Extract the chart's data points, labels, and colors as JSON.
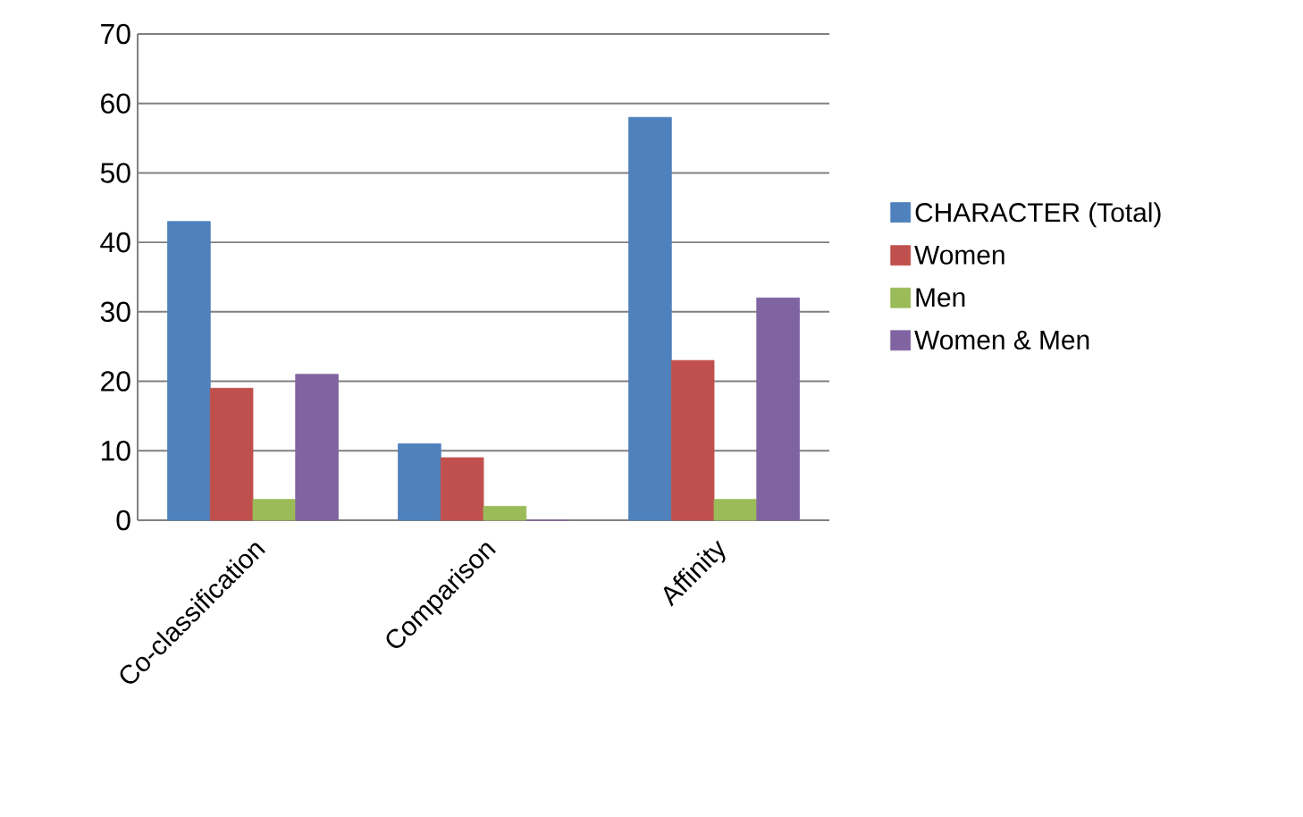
{
  "chart_data": {
    "type": "bar",
    "categories": [
      "Co-classification",
      "Comparison",
      "Affinity"
    ],
    "series": [
      {
        "name": "CHARACTER (Total)",
        "color": "#4f81bd",
        "values": [
          43,
          11,
          58
        ]
      },
      {
        "name": "Women",
        "color": "#c0504d",
        "values": [
          19,
          9,
          23
        ]
      },
      {
        "name": "Men",
        "color": "#9bbb59",
        "values": [
          3,
          2,
          3
        ]
      },
      {
        "name": "Women & Men",
        "color": "#8064a2",
        "values": [
          21,
          0,
          32
        ]
      }
    ],
    "ylim": [
      0,
      70
    ],
    "yticks": [
      0,
      10,
      20,
      30,
      40,
      50,
      60,
      70
    ],
    "grid": "y",
    "legend": "right"
  }
}
